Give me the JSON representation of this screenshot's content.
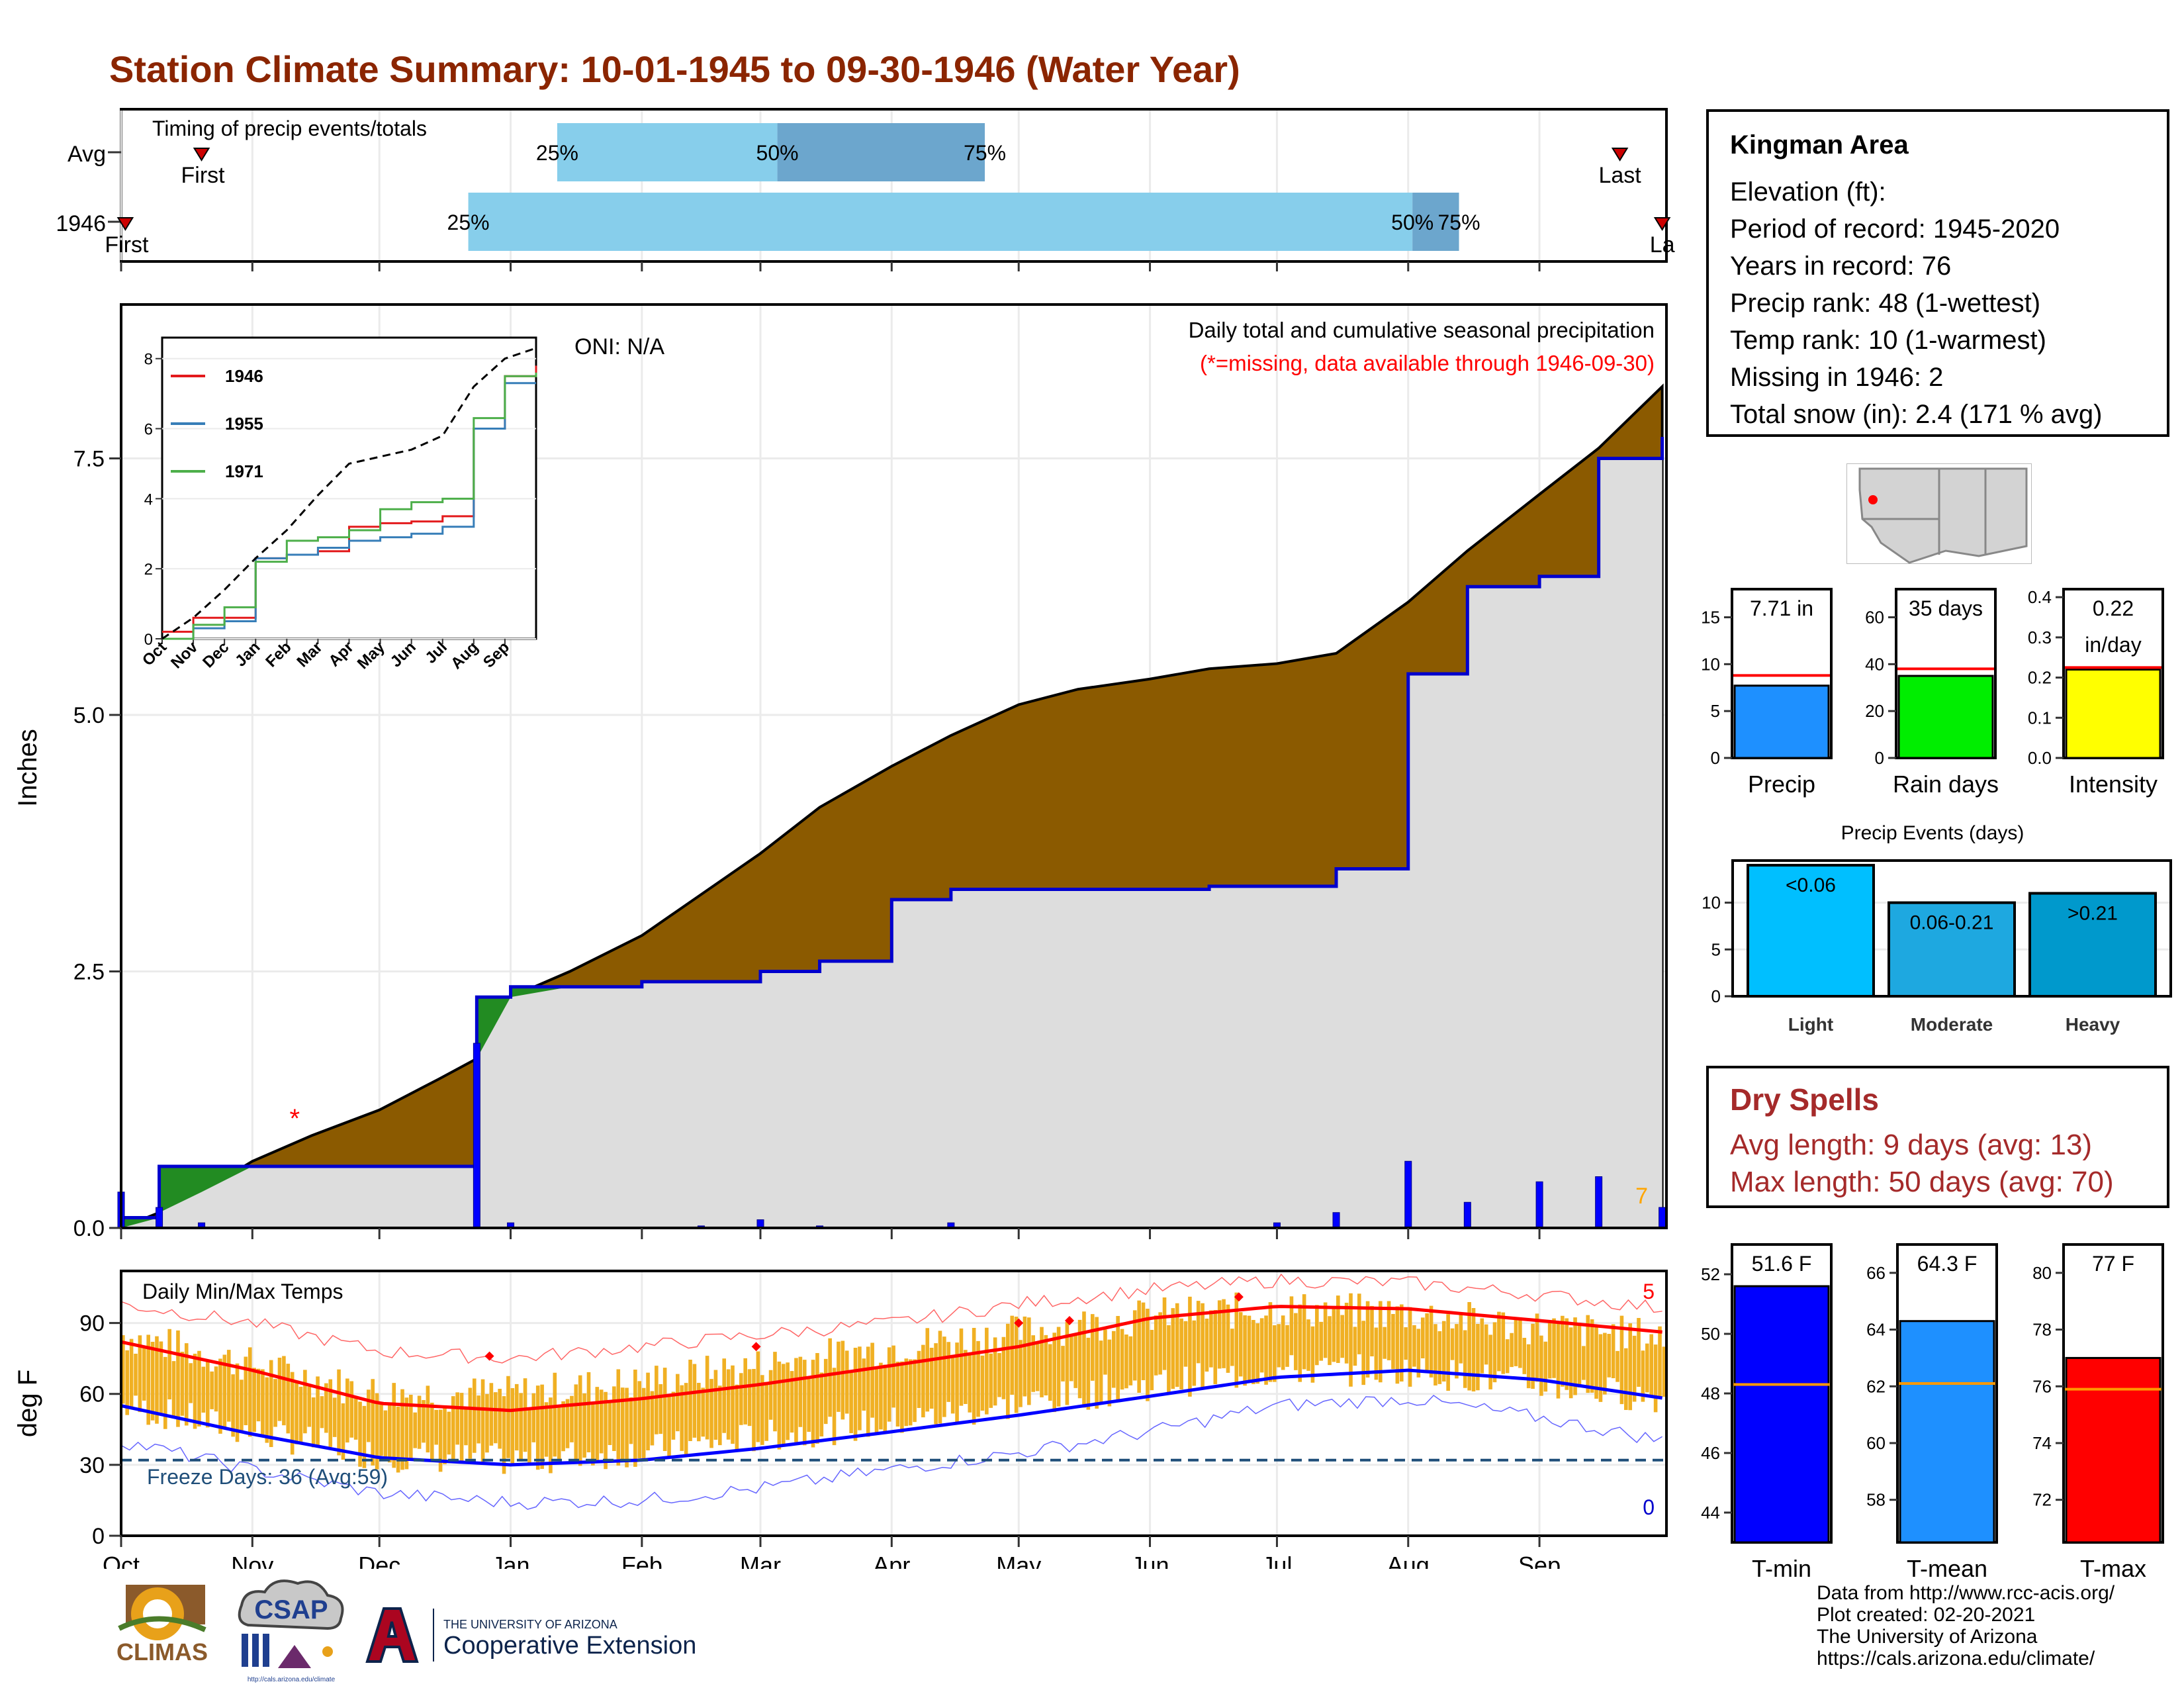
{
  "title": "Station Climate Summary: 10-01-1945 to 09-30-1946 (Water Year)",
  "colors": {
    "title": "#8b2500",
    "precip_fill": "#8b5a00",
    "deficit_fill": "#228b22",
    "avg_area": "#dddddd",
    "cumulative_line": "#0000cd",
    "daily_bar": "#0000ff",
    "temp_bar": "#f0b023",
    "tmax_avg": "#ff0000",
    "tmin_avg": "#0000ff",
    "quartile_light": "#87ceeb",
    "quartile_dark": "#6ca6cd",
    "missing": "#ff0000"
  },
  "timing": {
    "header": "Timing of precip events/totals",
    "rows": [
      "Avg",
      "1946"
    ],
    "first_label": "First",
    "last_label": "Last",
    "last_label_clipped": "La",
    "pct_labels": [
      "25%",
      "50%",
      "75%"
    ]
  },
  "main": {
    "y_title": "Inches",
    "y_ticks": [
      "0.0",
      "2.5",
      "5.0",
      "7.5"
    ],
    "oni": "ONI: N/A",
    "caption": "Daily total and cumulative seasonal precipitation",
    "missing_note": "(*=missing, data available through 1946-09-30)",
    "corner_count": "7"
  },
  "inset": {
    "y_ticks": [
      "0",
      "2",
      "4",
      "6",
      "8"
    ],
    "x_ticks": [
      "Oct",
      "Nov",
      "Dec",
      "Jan",
      "Feb",
      "Mar",
      "Apr",
      "May",
      "Jun",
      "Jul",
      "Aug",
      "Sep"
    ],
    "legend": [
      {
        "name": "1946",
        "color": "#e31a1c"
      },
      {
        "name": "1955",
        "color": "#377eb8"
      },
      {
        "name": "1971",
        "color": "#4daf4a"
      }
    ]
  },
  "temps": {
    "header": "Daily Min/Max Temps",
    "y_title": "deg F",
    "y_ticks": [
      "0",
      "30",
      "60",
      "90"
    ],
    "freeze": "Freeze Days: 36 (Avg:59)",
    "count_max": "5",
    "count_min": "0"
  },
  "months": [
    "Oct",
    "Nov",
    "Dec",
    "Jan",
    "Feb",
    "Mar",
    "Apr",
    "May",
    "Jun",
    "Jul",
    "Aug",
    "Sep"
  ],
  "info": {
    "station": "Kingman Area",
    "lines": [
      "Elevation (ft):",
      "Period of record: 1945-2020",
      "Years in record: 76",
      "Precip rank: 48 (1-wettest)",
      "Temp rank: 10 (1-warmest)",
      "Missing in 1946: 2",
      "Total snow (in): 2.4 (171 % avg)"
    ]
  },
  "mini_bars": [
    {
      "label": "Precip",
      "value_text": "7.71 in",
      "value": 7.71,
      "avg": 8.8,
      "ylim": [
        0,
        18
      ],
      "ticks": [
        "0",
        "5",
        "10",
        "15"
      ],
      "tick_vals": [
        0,
        5,
        10,
        15
      ],
      "color": "#1e90ff"
    },
    {
      "label": "Rain days",
      "value_text": "35 days",
      "value": 35,
      "avg": 38,
      "ylim": [
        0,
        72
      ],
      "ticks": [
        "0",
        "20",
        "40",
        "60"
      ],
      "tick_vals": [
        0,
        20,
        40,
        60
      ],
      "color": "#00ee00"
    },
    {
      "label": "Intensity",
      "value_text": "0.22",
      "value_text2": "in/day",
      "value": 0.22,
      "avg": 0.225,
      "ylim": [
        0,
        0.42
      ],
      "ticks": [
        "0.0",
        "0.1",
        "0.2",
        "0.3",
        "0.4"
      ],
      "tick_vals": [
        0,
        0.1,
        0.2,
        0.3,
        0.4
      ],
      "color": "#ffff00"
    }
  ],
  "precip_events": {
    "title": "Precip Events (days)",
    "ticks": [
      "0",
      "5",
      "10"
    ],
    "ylim": [
      0,
      14.5
    ],
    "bars": [
      {
        "label": "Light",
        "bar_text": "<0.06",
        "value": 14,
        "color": "#00bfff"
      },
      {
        "label": "Moderate",
        "bar_text": "0.06-0.21",
        "value": 10,
        "color": "#1ea8e0"
      },
      {
        "label": "Heavy",
        "bar_text": ">0.21",
        "value": 11,
        "color": "#0099cc"
      }
    ]
  },
  "dry_spells": {
    "title": "Dry Spells",
    "lines": [
      "Avg length: 9 days (avg: 13)",
      "Max length: 50 days (avg: 70)"
    ]
  },
  "temp_bars": [
    {
      "label": "T-min",
      "value_text": "51.6 F",
      "value": 51.6,
      "avg": 48.3,
      "ylim": [
        43,
        53
      ],
      "ticks": [
        "44",
        "46",
        "48",
        "50",
        "52"
      ],
      "tick_vals": [
        44,
        46,
        48,
        50,
        52
      ],
      "color": "#0000ff"
    },
    {
      "label": "T-mean",
      "value_text": "64.3 F",
      "value": 64.3,
      "avg": 62.1,
      "ylim": [
        56.5,
        67
      ],
      "ticks": [
        "58",
        "60",
        "62",
        "64",
        "66"
      ],
      "tick_vals": [
        58,
        60,
        62,
        64,
        66
      ],
      "color": "#1e90ff"
    },
    {
      "label": "T-max",
      "value_text": "77 F",
      "value": 77,
      "avg": 75.9,
      "ylim": [
        70.5,
        81
      ],
      "ticks": [
        "72",
        "74",
        "76",
        "78",
        "80"
      ],
      "tick_vals": [
        72,
        74,
        76,
        78,
        80
      ],
      "color": "#ff0000"
    }
  ],
  "footer": [
    "Data from http://www.rcc-acis.org/",
    "Plot created: 02-20-2021",
    "The University of Arizona",
    "https://cals.arizona.edu/climate/"
  ],
  "logos": {
    "climas": "CLIMAS",
    "csap": "CSAP",
    "csap_url": "http://cals.arizona.edu/climate",
    "ua_small": "THE UNIVERSITY OF ARIZONA",
    "ua_big": "Cooperative Extension"
  },
  "chart_data": [
    {
      "type": "bar",
      "title": "Timing of precip events/totals",
      "categories": [
        "Avg",
        "1946"
      ],
      "series": [
        {
          "name": "25%",
          "values": [
            "Jan 12",
            "Dec 22"
          ]
        },
        {
          "name": "50%",
          "values": [
            "Mar 5",
            "Aug 2"
          ]
        },
        {
          "name": "75%",
          "values": [
            "Apr 23",
            "Aug 13"
          ]
        },
        {
          "name": "First",
          "values": [
            "Oct 20",
            "Oct 2"
          ]
        },
        {
          "name": "Last",
          "values": [
            "Sep 20",
            "Sep 30"
          ]
        }
      ]
    },
    {
      "type": "area",
      "title": "Daily total and cumulative seasonal precipitation",
      "ylabel": "Inches",
      "ylim": [
        0,
        9
      ],
      "x": [
        "Oct 1",
        "Oct 10",
        "Oct 20",
        "Nov 1",
        "Nov 15",
        "Dec 1",
        "Dec 15",
        "Dec 24",
        "Jan 1",
        "Jan 15",
        "Feb 1",
        "Feb 15",
        "Mar 1",
        "Mar 15",
        "Apr 1",
        "Apr 15",
        "May 1",
        "May 15",
        "Jun 1",
        "Jun 15",
        "Jul 1",
        "Jul 15",
        "Aug 1",
        "Aug 15",
        "Sep 1",
        "Sep 15",
        "Sep 30"
      ],
      "series": [
        {
          "name": "Avg cumulative",
          "values": [
            0,
            0.15,
            0.35,
            0.65,
            0.9,
            1.15,
            1.45,
            1.65,
            2.25,
            2.5,
            2.85,
            3.25,
            3.65,
            4.1,
            4.5,
            4.8,
            5.1,
            5.25,
            5.35,
            5.45,
            5.5,
            5.6,
            6.1,
            6.6,
            7.15,
            7.6,
            8.2
          ]
        },
        {
          "name": "1946 cumulative",
          "values": [
            0.1,
            0.6,
            0.6,
            0.6,
            0.6,
            0.6,
            0.6,
            2.25,
            2.35,
            2.35,
            2.4,
            2.4,
            2.5,
            2.6,
            3.2,
            3.3,
            3.3,
            3.3,
            3.3,
            3.33,
            3.33,
            3.5,
            5.4,
            6.25,
            6.35,
            7.5,
            7.71
          ]
        },
        {
          "name": "Daily",
          "values": [
            0.35,
            0.2,
            0.05,
            0,
            0,
            0,
            0,
            1.8,
            0.05,
            0,
            0,
            0.02,
            0.08,
            0.02,
            0,
            0.05,
            0,
            0,
            0,
            0,
            0.05,
            0.15,
            0.65,
            0.25,
            0.45,
            0.5,
            0.2
          ]
        }
      ]
    },
    {
      "type": "line",
      "title": "",
      "ylim": [
        0,
        8.6
      ],
      "x": [
        "Oct",
        "Nov",
        "Dec",
        "Jan",
        "Feb",
        "Mar",
        "Apr",
        "May",
        "Jun",
        "Jul",
        "Aug",
        "Sep",
        "Sep end"
      ],
      "series": [
        {
          "name": "1946",
          "values": [
            0.2,
            0.6,
            0.6,
            2.3,
            2.4,
            2.5,
            3.2,
            3.3,
            3.35,
            3.5,
            6.0,
            7.5,
            7.8
          ]
        },
        {
          "name": "1955",
          "values": [
            0,
            0.3,
            0.5,
            2.3,
            2.4,
            2.6,
            2.8,
            2.9,
            3.0,
            3.2,
            6.0,
            7.3,
            7.3
          ]
        },
        {
          "name": "1971",
          "values": [
            0,
            0.4,
            0.9,
            2.2,
            2.8,
            2.9,
            3.1,
            3.7,
            3.9,
            4.0,
            6.3,
            7.5,
            7.6
          ]
        },
        {
          "name": "Average",
          "values": [
            0,
            0.6,
            1.4,
            2.3,
            3.1,
            4.1,
            5.0,
            5.2,
            5.4,
            5.8,
            7.2,
            8.0,
            8.3
          ]
        }
      ]
    },
    {
      "type": "line",
      "title": "Daily Min/Max Temps",
      "ylabel": "deg F",
      "ylim": [
        0,
        112
      ],
      "x": [
        "Oct",
        "Nov",
        "Dec",
        "Jan",
        "Feb",
        "Mar",
        "Apr",
        "May",
        "Jun",
        "Jul",
        "Aug",
        "Sep",
        "Sep end"
      ],
      "series": [
        {
          "name": "Avg max",
          "values": [
            82,
            70,
            56,
            53,
            58,
            64,
            72,
            80,
            92,
            97,
            96,
            91,
            86
          ]
        },
        {
          "name": "Avg min",
          "values": [
            55,
            43,
            33,
            30,
            32,
            37,
            44,
            51,
            59,
            67,
            70,
            66,
            58
          ]
        },
        {
          "name": "Record max",
          "values": [
            98,
            90,
            78,
            75,
            80,
            85,
            90,
            98,
            104,
            108,
            107,
            102,
            96
          ]
        },
        {
          "name": "Record min",
          "values": [
            40,
            28,
            18,
            14,
            15,
            20,
            28,
            35,
            44,
            55,
            58,
            50,
            40
          ]
        },
        {
          "name": "Daily max",
          "values": [
            85,
            72,
            60,
            60,
            65,
            72,
            80,
            86,
            93,
            96,
            94,
            88,
            84
          ]
        },
        {
          "name": "Daily min",
          "values": [
            55,
            44,
            34,
            32,
            36,
            42,
            48,
            56,
            64,
            70,
            70,
            64,
            58
          ]
        }
      ]
    },
    {
      "type": "bar",
      "title": "",
      "categories": [
        "Precip",
        "Rain days",
        "Intensity"
      ],
      "values": [
        7.71,
        35,
        0.22
      ]
    },
    {
      "type": "bar",
      "title": "Precip Events (days)",
      "categories": [
        "Light",
        "Moderate",
        "Heavy"
      ],
      "values": [
        14,
        10,
        11
      ]
    },
    {
      "type": "bar",
      "title": "",
      "categories": [
        "T-min",
        "T-mean",
        "T-max"
      ],
      "values": [
        51.6,
        64.3,
        77
      ]
    }
  ]
}
